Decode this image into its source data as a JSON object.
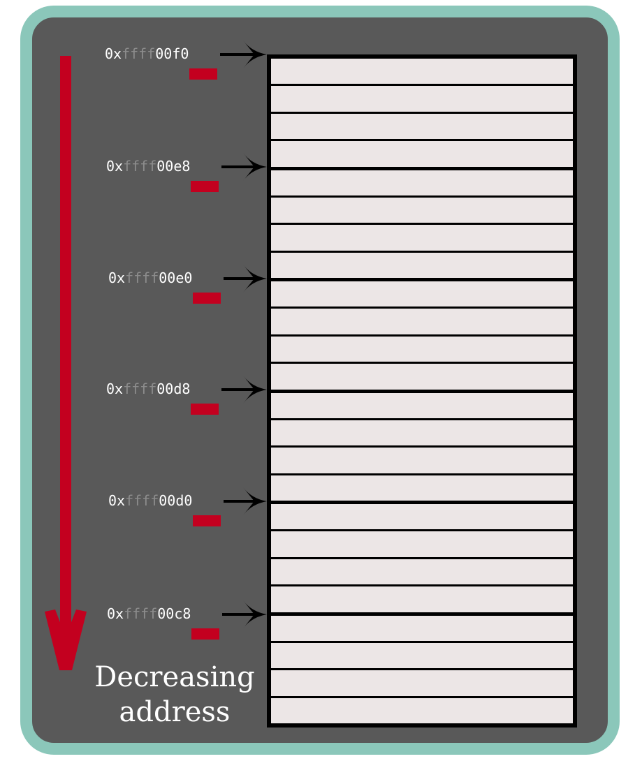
{
  "caption": {
    "line1": "Decreasing",
    "line2": "address"
  },
  "addresses": [
    {
      "prefix": "0x",
      "mid": "ffff",
      "tail": "00f0"
    },
    {
      "prefix": "0x",
      "mid": "ffff",
      "tail": "00e8"
    },
    {
      "prefix": "0x",
      "mid": "ffff",
      "tail": "00e0"
    },
    {
      "prefix": "0x",
      "mid": "ffff",
      "tail": "00d8"
    },
    {
      "prefix": "0x",
      "mid": "ffff",
      "tail": "00d0"
    },
    {
      "prefix": "0x",
      "mid": "ffff",
      "tail": "00c8"
    }
  ],
  "memory": {
    "cell_count": 24,
    "cells_per_word": 4
  },
  "colors": {
    "background": "#595959",
    "frame_border": "#8bc7ba",
    "accent_red": "#c3001f",
    "cell_fill": "#ece6e6",
    "address_dim": "#8c8c8c",
    "text": "#ffffff"
  }
}
